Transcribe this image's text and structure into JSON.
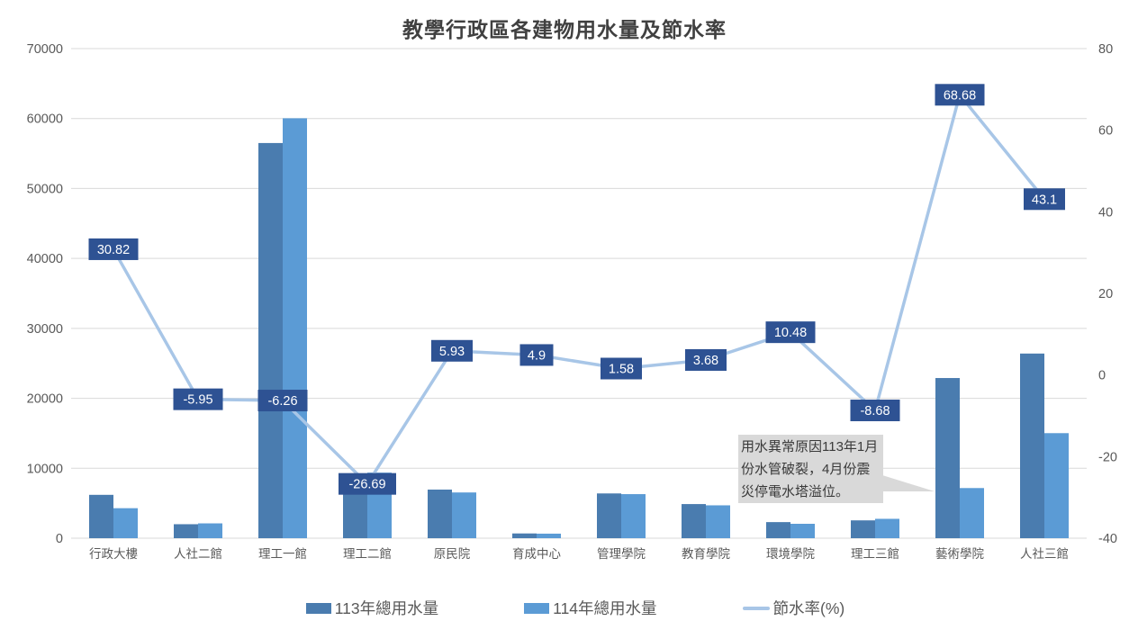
{
  "chart_data": {
    "type": "combo-bar-line",
    "title": "教學行政區各建物用水量及節水率",
    "categories": [
      "行政大樓",
      "人社二館",
      "理工一館",
      "理工二館",
      "原民院",
      "育成中心",
      "管理學院",
      "教育學院",
      "環境學院",
      "理工三館",
      "藝術學院",
      "人社三館"
    ],
    "series": [
      {
        "name": "113年總用水量",
        "color": "#4A7CAF",
        "values": [
          6200,
          2000,
          56500,
          7400,
          6950,
          680,
          6400,
          4880,
          2300,
          2550,
          22900,
          26400
        ]
      },
      {
        "name": "114年總用水量",
        "color": "#5B9BD5",
        "values": [
          4290,
          2120,
          60040,
          9375,
          6540,
          650,
          6300,
          4700,
          2060,
          2770,
          7170,
          15020
        ]
      }
    ],
    "line_series": {
      "name": "節水率(%)",
      "color": "#A8C6E7",
      "label_fill": "#2E5293",
      "label_text_color": "#FFFFFF",
      "values": [
        30.82,
        -5.95,
        -6.26,
        -26.69,
        5.93,
        4.9,
        1.58,
        3.68,
        10.48,
        -8.68,
        68.68,
        43.1
      ]
    },
    "left_axis": {
      "min": 0,
      "max": 70000,
      "ticks": [
        "0",
        "10000",
        "20000",
        "30000",
        "40000",
        "50000",
        "60000",
        "70000"
      ]
    },
    "right_axis": {
      "min": -40,
      "max": 80,
      "ticks": [
        "-40",
        "-20",
        "0",
        "20",
        "40",
        "60",
        "80"
      ]
    },
    "grid": true,
    "legend_position": "bottom"
  },
  "annotation": {
    "lines": [
      "用水異常原因113年1月",
      "份水管破裂，4月份震",
      "災停電水塔溢位。"
    ],
    "bg": "#D9D9D9"
  },
  "colors": {
    "title": "#404040",
    "axis_text": "#595959",
    "gridline": "#D9D9D9",
    "background": "#FFFFFF"
  }
}
